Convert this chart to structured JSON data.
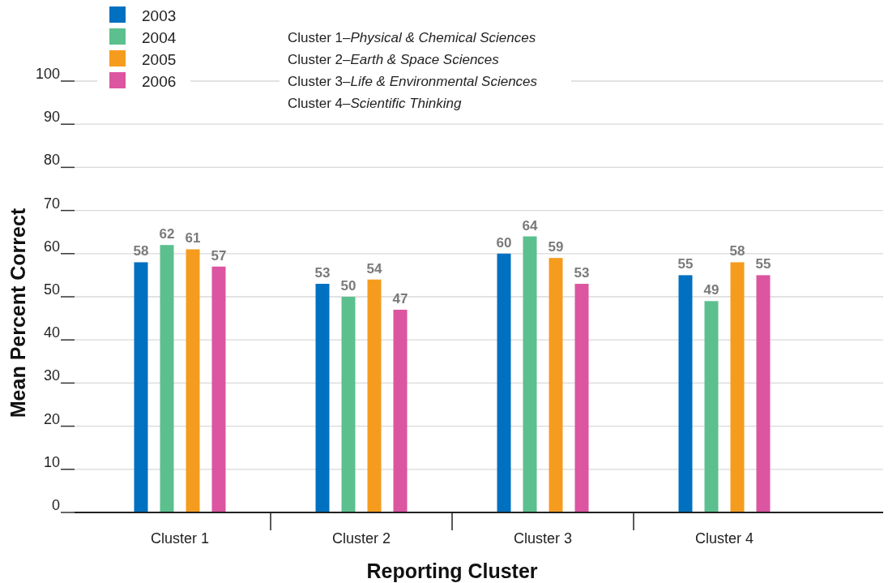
{
  "chart_data": {
    "type": "bar",
    "xlabel": "Reporting Cluster",
    "ylabel": "Mean Percent Correct",
    "categories": [
      "Cluster 1",
      "Cluster 2",
      "Cluster 3",
      "Cluster 4"
    ],
    "series": [
      {
        "name": "2003",
        "color": "#0070c0",
        "values": [
          58,
          53,
          60,
          55
        ]
      },
      {
        "name": "2004",
        "color": "#5cc08e",
        "values": [
          62,
          50,
          64,
          49
        ]
      },
      {
        "name": "2005",
        "color": "#f59c1e",
        "values": [
          61,
          54,
          59,
          58
        ]
      },
      {
        "name": "2006",
        "color": "#dc55a0",
        "values": [
          57,
          47,
          53,
          55
        ]
      }
    ],
    "ylim": [
      0,
      100
    ],
    "yticks": [
      0,
      10,
      20,
      30,
      40,
      50,
      60,
      70,
      80,
      90,
      100
    ],
    "grid": "y",
    "legend": "top left",
    "data_labels": true,
    "annotations": [
      "Cluster 1–Physical & Chemical Sciences",
      "Cluster 2–Earth & Space Sciences",
      "Cluster 3–Life & Environmental Sciences",
      "Cluster 4–Scientific Thinking"
    ]
  }
}
